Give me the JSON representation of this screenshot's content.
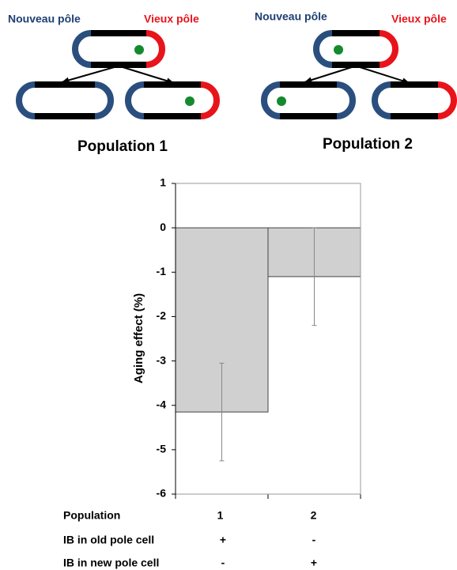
{
  "diagram": {
    "populations": [
      {
        "new_pole": "Nouveau pôle",
        "old_pole": "Vieux pôle",
        "label": "Population 1"
      },
      {
        "new_pole": "Nouveau pôle",
        "old_pole": "Vieux pôle",
        "label": "Population 2"
      }
    ]
  },
  "chart_data": {
    "type": "bar",
    "y_label": "Aging effect (%)",
    "categories": [
      "1",
      "2"
    ],
    "values": [
      -4.15,
      -1.1
    ],
    "errors": [
      1.1,
      1.1
    ],
    "color": "#d0d0d0",
    "ylim": [
      -6,
      1
    ],
    "yticks": [
      1,
      0,
      -1,
      -2,
      -3,
      -4,
      -5,
      -6
    ],
    "grid": false
  },
  "table": {
    "header": "Population",
    "rows": [
      [
        "IB in old pole cell",
        "+",
        "-"
      ],
      [
        "IB in new pole cell",
        "-",
        "+"
      ]
    ]
  }
}
